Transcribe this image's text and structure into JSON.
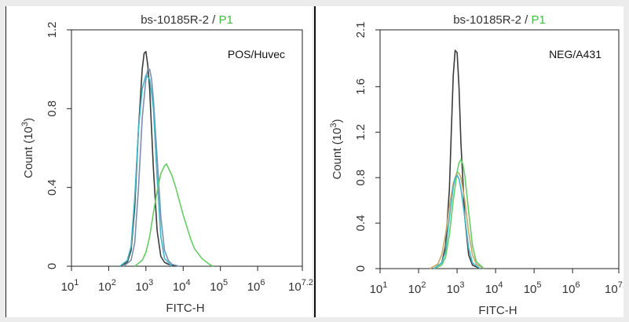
{
  "chart_data": [
    {
      "type": "line",
      "title_main": "bs-10185R-2",
      "title_sep": " / ",
      "title_gate": "P1",
      "annotation": "POS/Huvec",
      "xlabel": "FITC-H",
      "ylabel": "Count (10",
      "ylabel_sup": "3",
      "ylabel_close": ")",
      "x_scale": "log",
      "xlim": [
        1,
        7.2
      ],
      "ylim": [
        0,
        1.2
      ],
      "x_ticks": [
        {
          "base": "10",
          "exp": "1",
          "v": 1
        },
        {
          "base": "10",
          "exp": "2",
          "v": 2
        },
        {
          "base": "10",
          "exp": "3",
          "v": 3
        },
        {
          "base": "10",
          "exp": "4",
          "v": 4
        },
        {
          "base": "10",
          "exp": "5",
          "v": 5
        },
        {
          "base": "10",
          "exp": "6",
          "v": 6
        },
        {
          "base": "10",
          "exp": "7.2",
          "v": 7.2
        }
      ],
      "y_ticks": [
        {
          "label": "0",
          "v": 0
        },
        {
          "label": "0.4",
          "v": 0.4
        },
        {
          "label": "0.8",
          "v": 0.8
        },
        {
          "label": "1.2",
          "v": 1.2
        }
      ],
      "series": [
        {
          "color": "#3c3c3c",
          "x": [
            2.3,
            2.5,
            2.6,
            2.7,
            2.8,
            2.9,
            2.95,
            3.0,
            3.05,
            3.1,
            3.2,
            3.3,
            3.4,
            3.5,
            3.6,
            3.8
          ],
          "y": [
            0,
            0.02,
            0.08,
            0.3,
            0.7,
            1.0,
            1.08,
            1.09,
            1.02,
            0.9,
            0.5,
            0.18,
            0.05,
            0.02,
            0.01,
            0
          ]
        },
        {
          "color": "#7a8fb0",
          "x": [
            2.4,
            2.6,
            2.7,
            2.8,
            2.9,
            3.0,
            3.05,
            3.1,
            3.15,
            3.2,
            3.3,
            3.4,
            3.5,
            3.6,
            3.7,
            3.9
          ],
          "y": [
            0,
            0.03,
            0.12,
            0.4,
            0.75,
            0.95,
            1.0,
            1.0,
            0.95,
            0.85,
            0.55,
            0.25,
            0.08,
            0.03,
            0.01,
            0
          ]
        },
        {
          "color": "#40b8c8",
          "x": [
            2.3,
            2.5,
            2.6,
            2.7,
            2.8,
            2.9,
            3.0,
            3.1,
            3.15,
            3.2,
            3.3,
            3.4,
            3.5,
            3.7
          ],
          "y": [
            0,
            0.03,
            0.1,
            0.35,
            0.7,
            0.9,
            0.97,
            0.95,
            0.88,
            0.8,
            0.45,
            0.15,
            0.04,
            0
          ]
        },
        {
          "color": "#66cc66",
          "x": [
            2.7,
            2.9,
            3.0,
            3.1,
            3.2,
            3.3,
            3.4,
            3.5,
            3.55,
            3.6,
            3.7,
            3.8,
            3.9,
            4.0,
            4.1,
            4.2,
            4.3,
            4.5,
            4.7,
            4.8
          ],
          "y": [
            0,
            0.03,
            0.07,
            0.15,
            0.27,
            0.38,
            0.47,
            0.51,
            0.52,
            0.5,
            0.46,
            0.4,
            0.33,
            0.26,
            0.2,
            0.14,
            0.09,
            0.04,
            0.01,
            0
          ]
        }
      ]
    },
    {
      "type": "line",
      "title_main": "bs-10185R-2",
      "title_sep": " / ",
      "title_gate": "P1",
      "annotation": "NEG/A431",
      "xlabel": "FITC-H",
      "ylabel": "Count (10",
      "ylabel_sup": "3",
      "ylabel_close": ")",
      "x_scale": "log",
      "xlim": [
        1,
        7.2
      ],
      "ylim": [
        0,
        2.1
      ],
      "x_ticks": [
        {
          "base": "10",
          "exp": "1",
          "v": 1
        },
        {
          "base": "10",
          "exp": "2",
          "v": 2
        },
        {
          "base": "10",
          "exp": "3",
          "v": 3
        },
        {
          "base": "10",
          "exp": "4",
          "v": 4
        },
        {
          "base": "10",
          "exp": "5",
          "v": 5
        },
        {
          "base": "10",
          "exp": "6",
          "v": 6
        },
        {
          "base": "10",
          "exp": "7.2",
          "v": 7.2
        }
      ],
      "y_ticks": [
        {
          "label": "0",
          "v": 0
        },
        {
          "label": "0.4",
          "v": 0.4
        },
        {
          "label": "0.8",
          "v": 0.8
        },
        {
          "label": "1.2",
          "v": 1.2
        },
        {
          "label": "1.6",
          "v": 1.6
        },
        {
          "label": "2.1",
          "v": 2.1
        }
      ],
      "series": [
        {
          "color": "#3c3c3c",
          "x": [
            2.4,
            2.6,
            2.7,
            2.8,
            2.85,
            2.9,
            2.95,
            3.0,
            3.05,
            3.1,
            3.2,
            3.3,
            3.4,
            3.6
          ],
          "y": [
            0,
            0.05,
            0.2,
            0.7,
            1.2,
            1.7,
            1.92,
            1.9,
            1.6,
            1.1,
            0.45,
            0.12,
            0.03,
            0
          ]
        },
        {
          "color": "#c8a868",
          "x": [
            2.3,
            2.5,
            2.6,
            2.7,
            2.8,
            2.9,
            3.0,
            3.05,
            3.1,
            3.2,
            3.3,
            3.4,
            3.5,
            3.7
          ],
          "y": [
            0,
            0.04,
            0.12,
            0.3,
            0.55,
            0.75,
            0.85,
            0.84,
            0.8,
            0.6,
            0.32,
            0.12,
            0.04,
            0
          ]
        },
        {
          "color": "#66cc66",
          "x": [
            2.4,
            2.6,
            2.7,
            2.8,
            2.9,
            3.0,
            3.05,
            3.1,
            3.15,
            3.2,
            3.3,
            3.4,
            3.5,
            3.7
          ],
          "y": [
            0,
            0.03,
            0.1,
            0.3,
            0.6,
            0.85,
            0.93,
            0.96,
            0.92,
            0.82,
            0.5,
            0.2,
            0.06,
            0
          ]
        },
        {
          "color": "#40b8c8",
          "x": [
            2.4,
            2.6,
            2.7,
            2.8,
            2.9,
            2.95,
            3.0,
            3.05,
            3.1,
            3.2,
            3.3,
            3.4,
            3.6
          ],
          "y": [
            0,
            0.05,
            0.15,
            0.45,
            0.72,
            0.8,
            0.82,
            0.79,
            0.7,
            0.45,
            0.18,
            0.05,
            0
          ]
        }
      ]
    }
  ]
}
